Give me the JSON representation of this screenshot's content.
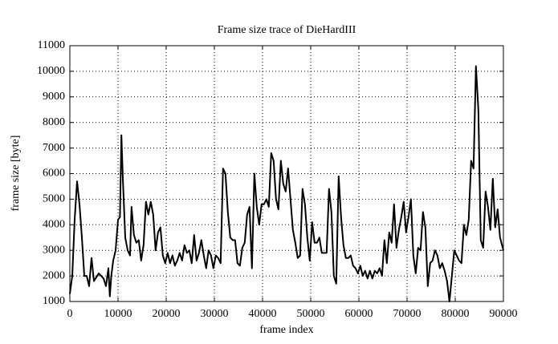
{
  "chart_data": {
    "type": "line",
    "title": "Frame size trace of DieHardIII",
    "x_label": "frame index",
    "y_label": "frame size [byte]",
    "series": [
      {
        "name": "DieHardIII",
        "color": "#000000",
        "x": [
          0,
          500,
          1000,
          1500,
          2000,
          2500,
          3000,
          3500,
          4000,
          4500,
          5000,
          6000,
          7000,
          7500,
          8000,
          8300,
          8600,
          9000,
          9500,
          10000,
          10400,
          10700,
          11000,
          11500,
          12000,
          12500,
          12800,
          13300,
          13800,
          14300,
          14800,
          15300,
          15800,
          16300,
          16800,
          17300,
          17800,
          18300,
          18800,
          19300,
          19800,
          20300,
          20800,
          21300,
          21800,
          22300,
          22800,
          23300,
          23800,
          24300,
          24800,
          25300,
          25800,
          26300,
          26800,
          27300,
          27800,
          28300,
          28800,
          29300,
          29800,
          30300,
          30800,
          31300,
          31800,
          32300,
          32800,
          33300,
          33800,
          34300,
          34800,
          35300,
          35800,
          36300,
          36800,
          37300,
          37800,
          38300,
          38800,
          39300,
          39800,
          40300,
          40800,
          41300,
          41800,
          42300,
          42800,
          43300,
          43800,
          44300,
          44800,
          45300,
          45800,
          46300,
          46800,
          47300,
          47800,
          48300,
          48800,
          49300,
          49800,
          50300,
          50800,
          51300,
          51800,
          52300,
          52800,
          53300,
          53800,
          54300,
          54800,
          55300,
          55800,
          56300,
          56800,
          57300,
          57800,
          58300,
          58800,
          59300,
          59800,
          60300,
          60800,
          61300,
          61800,
          62300,
          62800,
          63300,
          63800,
          64300,
          64800,
          65300,
          65800,
          66300,
          66800,
          67300,
          67800,
          68300,
          68800,
          69300,
          69800,
          70300,
          70800,
          71300,
          71800,
          72300,
          72800,
          73300,
          73800,
          74300,
          74800,
          75300,
          75800,
          76300,
          76800,
          77300,
          77800,
          78300,
          78800,
          79300,
          79800,
          80300,
          80800,
          81300,
          81800,
          82300,
          82800,
          83300,
          83800,
          84300,
          84800,
          85300,
          85800,
          86300,
          86800,
          87300,
          87800,
          88300,
          88800,
          89300,
          90000
        ],
        "values": [
          1300,
          2000,
          4200,
          5700,
          4800,
          3500,
          2000,
          2000,
          1600,
          2700,
          1800,
          2100,
          1900,
          1600,
          2300,
          1200,
          2000,
          2600,
          3000,
          4200,
          4300,
          7500,
          5800,
          3500,
          3000,
          2800,
          4700,
          3600,
          3300,
          3400,
          2600,
          3200,
          4900,
          4400,
          4900,
          4400,
          3000,
          3700,
          3900,
          2800,
          2500,
          2900,
          2500,
          2800,
          2400,
          2600,
          2900,
          2600,
          3200,
          2900,
          3000,
          2500,
          3600,
          2600,
          2900,
          3400,
          2800,
          2300,
          3000,
          2800,
          2300,
          2800,
          2700,
          2500,
          6200,
          6000,
          4500,
          3500,
          3400,
          3400,
          2500,
          2400,
          3100,
          3300,
          4400,
          4700,
          2300,
          6000,
          4700,
          4000,
          4800,
          4800,
          5000,
          4700,
          6800,
          6500,
          5000,
          4600,
          6500,
          5600,
          5300,
          6200,
          5000,
          3800,
          3300,
          2700,
          2800,
          5400,
          4800,
          3500,
          2600,
          4100,
          3300,
          3300,
          3500,
          2900,
          2900,
          2900,
          5400,
          4500,
          2000,
          1700,
          5900,
          4300,
          3200,
          2700,
          2700,
          2800,
          2400,
          2300,
          2100,
          2400,
          2000,
          2200,
          1900,
          2200,
          1900,
          2200,
          2100,
          2300,
          2000,
          3400,
          2500,
          3700,
          3300,
          4800,
          3100,
          3800,
          4300,
          4900,
          3700,
          4300,
          5000,
          2800,
          2100,
          3100,
          3000,
          4500,
          3900,
          1600,
          2500,
          2600,
          3000,
          2800,
          2300,
          2500,
          2200,
          1800,
          1000,
          2000,
          3000,
          2800,
          2600,
          2500,
          4000,
          3600,
          4200,
          6500,
          6200,
          10200,
          8500,
          3400,
          3100,
          5300,
          4700,
          3800,
          5800,
          3900,
          4600,
          3500,
          3000
        ]
      }
    ],
    "xlim": [
      0,
      90000
    ],
    "ylim": [
      1000,
      11000
    ],
    "xticks": [
      0,
      10000,
      20000,
      30000,
      40000,
      50000,
      60000,
      70000,
      80000,
      90000
    ],
    "yticks": [
      1000,
      2000,
      3000,
      4000,
      5000,
      6000,
      7000,
      8000,
      9000,
      10000,
      11000
    ],
    "grid": true
  }
}
